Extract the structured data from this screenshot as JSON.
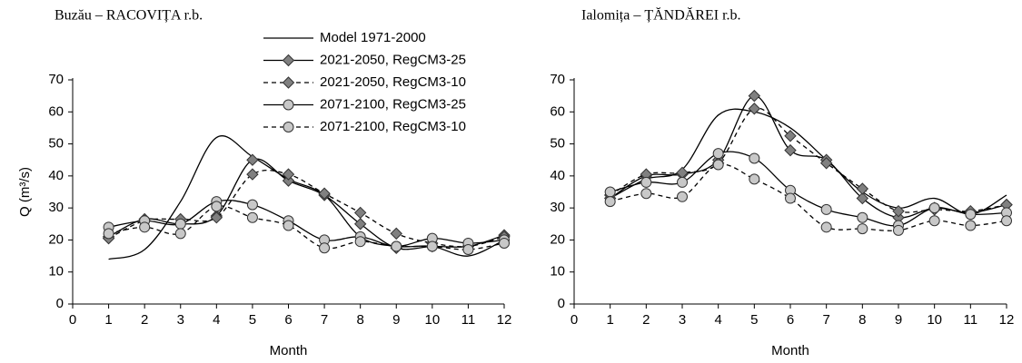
{
  "chart_data": [
    {
      "type": "line",
      "title": "Buzău – RACOVIȚA r.b.",
      "xlabel": "Month",
      "ylabel": "Q (m³/s)",
      "x": [
        1,
        2,
        3,
        4,
        5,
        6,
        7,
        8,
        9,
        10,
        11,
        12
      ],
      "xlim": [
        0,
        12
      ],
      "xticks": [
        0,
        1,
        2,
        3,
        4,
        5,
        6,
        7,
        8,
        9,
        10,
        11,
        12
      ],
      "ylim": [
        0,
        70
      ],
      "yticks": [
        0,
        10,
        20,
        30,
        40,
        50,
        60,
        70
      ],
      "legend": "upper-right",
      "series": [
        {
          "name": "Model 1971-2000",
          "color": "#000000",
          "dash": false,
          "marker": null,
          "values": [
            14,
            17,
            32,
            52,
            46,
            39,
            34,
            21,
            18,
            18,
            15,
            20
          ]
        },
        {
          "name": "2021-2050, RegCM3-25",
          "color": "#000000",
          "dash": false,
          "marker": "diamond",
          "marker_color": "#808080",
          "values": [
            21,
            26.5,
            25,
            27.5,
            45,
            38.5,
            34,
            25,
            17.5,
            18,
            18,
            21.5
          ]
        },
        {
          "name": "2021-2050, RegCM3-10",
          "color": "#000000",
          "dash": true,
          "marker": "diamond",
          "marker_color": "#808080",
          "values": [
            20.5,
            26,
            26.5,
            27,
            40.5,
            40.5,
            34.5,
            28.5,
            22,
            19,
            18,
            21
          ]
        },
        {
          "name": "2071-2100, RegCM3-25",
          "color": "#000000",
          "dash": false,
          "marker": "circle",
          "marker_color": "#c8c8c8",
          "values": [
            24,
            26,
            25,
            32,
            31,
            26,
            20,
            21,
            18,
            20.5,
            19,
            20
          ]
        },
        {
          "name": "2071-2100, RegCM3-10",
          "color": "#000000",
          "dash": true,
          "marker": "circle",
          "marker_color": "#c8c8c8",
          "values": [
            22,
            24,
            22,
            30.5,
            27,
            24.5,
            17.5,
            19.5,
            18,
            18,
            17,
            19
          ]
        }
      ]
    },
    {
      "type": "line",
      "title": "Ialomița – ȚĂNDĂREI r.b.",
      "xlabel": "Month",
      "x": [
        1,
        2,
        3,
        4,
        5,
        6,
        7,
        8,
        9,
        10,
        11,
        12
      ],
      "xlim": [
        0,
        12
      ],
      "xticks": [
        0,
        1,
        2,
        3,
        4,
        5,
        6,
        7,
        8,
        9,
        10,
        11,
        12
      ],
      "ylim": [
        0,
        70
      ],
      "yticks": [
        0,
        10,
        20,
        30,
        40,
        50,
        60,
        70
      ],
      "series": [
        {
          "color": "#000000",
          "dash": false,
          "marker": null,
          "values": [
            33,
            39,
            42,
            59,
            60,
            55,
            45,
            35,
            30,
            33,
            28,
            34
          ]
        },
        {
          "color": "#000000",
          "dash": false,
          "marker": "diamond",
          "marker_color": "#808080",
          "values": [
            33,
            40,
            40.5,
            45,
            65,
            48,
            45,
            33,
            27,
            30,
            28.5,
            31
          ]
        },
        {
          "color": "#000000",
          "dash": true,
          "marker": "diamond",
          "marker_color": "#808080",
          "values": [
            34,
            40.5,
            41,
            44,
            61,
            52.5,
            44,
            36,
            29,
            29.5,
            29,
            31
          ]
        },
        {
          "color": "#000000",
          "dash": false,
          "marker": "circle",
          "marker_color": "#c8c8c8",
          "values": [
            35,
            38,
            38,
            47,
            45.5,
            35.5,
            29.5,
            27,
            24.5,
            30,
            28,
            28.5
          ]
        },
        {
          "color": "#000000",
          "dash": true,
          "marker": "circle",
          "marker_color": "#c8c8c8",
          "values": [
            32,
            34.5,
            33.5,
            43.5,
            39,
            33,
            24,
            23.5,
            23,
            26,
            24.5,
            26
          ]
        }
      ]
    }
  ]
}
